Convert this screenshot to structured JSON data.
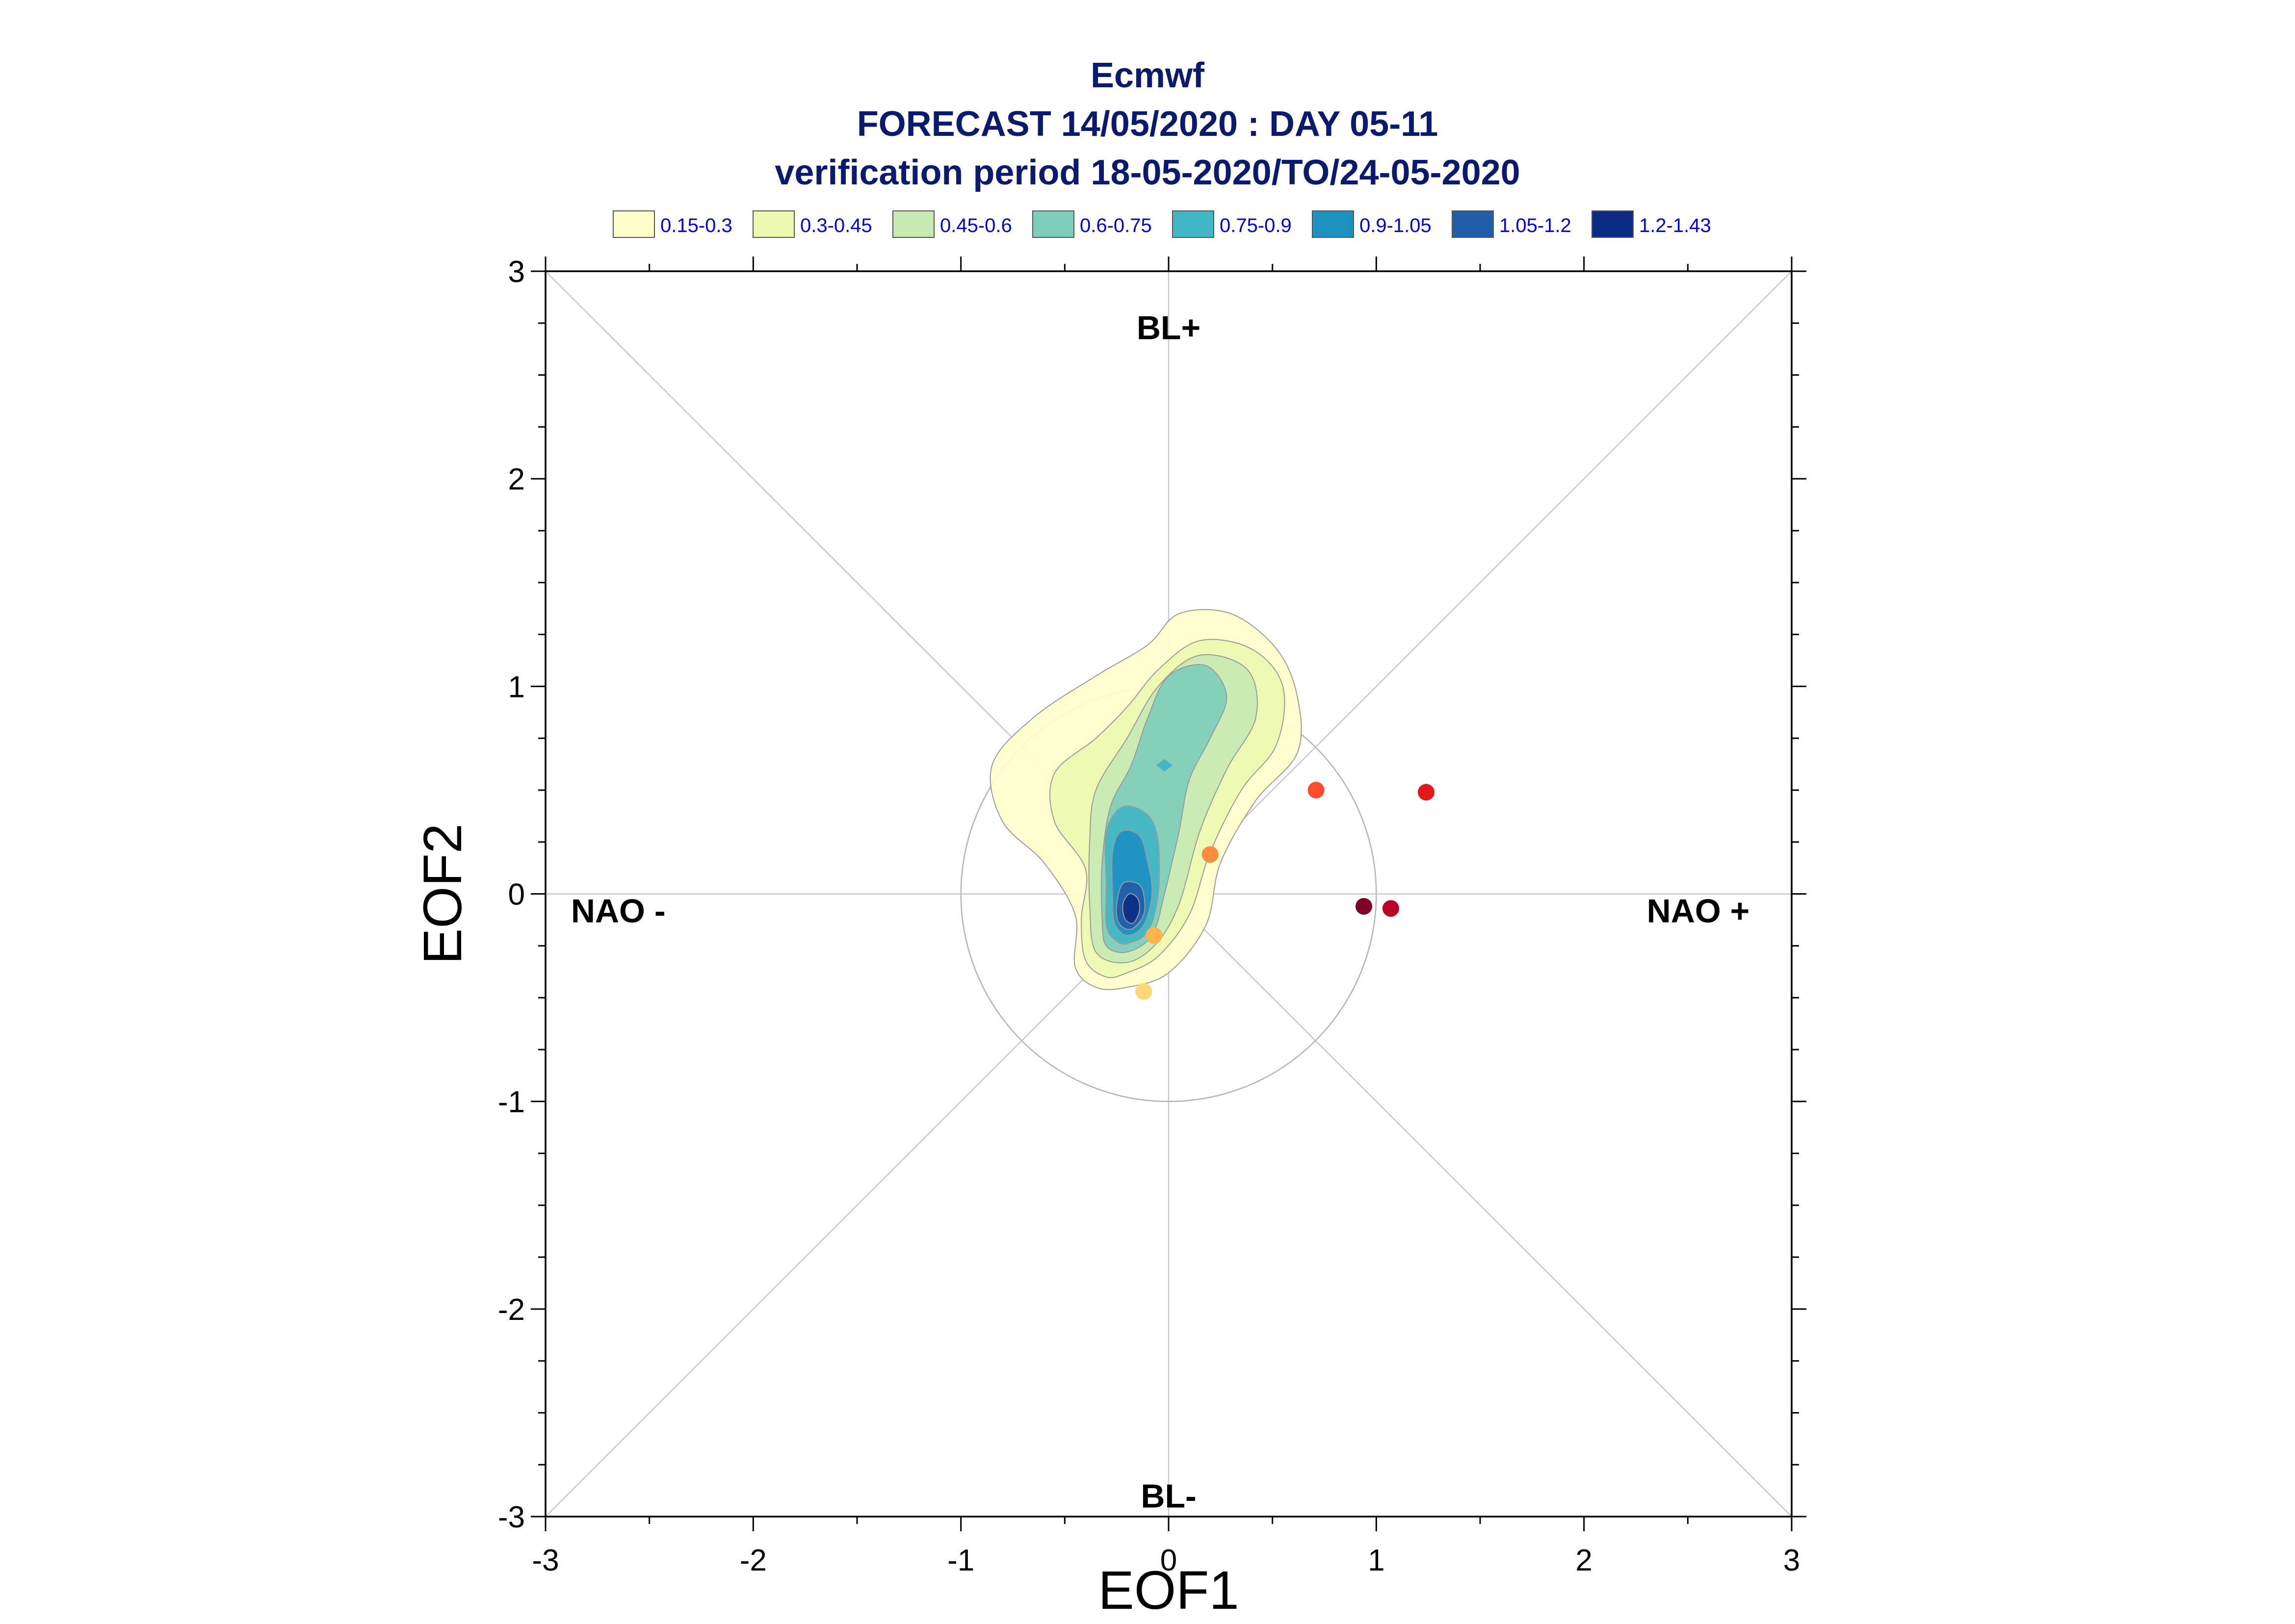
{
  "chart_data": {
    "type": "scatter",
    "title_lines": [
      "Ecmwf",
      "FORECAST 14/05/2020 : DAY 05-11",
      "verification period 18-05-2020/TO/24-05-2020"
    ],
    "xlabel": "EOF1",
    "ylabel": "EOF2",
    "xlim": [
      -3,
      3
    ],
    "ylim": [
      -3,
      3
    ],
    "x_ticks": [
      -3,
      -2,
      -1,
      0,
      1,
      2,
      3
    ],
    "y_ticks": [
      -3,
      -2,
      -1,
      0,
      1,
      2,
      3
    ],
    "x_tick_labels": [
      "-3",
      "-2",
      "-1",
      "0",
      "1",
      "2",
      "3"
    ],
    "y_tick_labels": [
      "-3",
      "-2",
      "-1",
      "0",
      "1",
      "2",
      "3"
    ],
    "grid": false,
    "reference_circle_radius": 1,
    "regime_labels": [
      {
        "text": "BL+",
        "x": 0,
        "y": 2.73
      },
      {
        "text": "BL-",
        "x": 0,
        "y": -2.9
      },
      {
        "text": "NAO -",
        "x": -2.65,
        "y": -0.08
      },
      {
        "text": "NAO +",
        "x": 2.55,
        "y": -0.08
      }
    ],
    "legend": {
      "placement": "top",
      "entries": [
        {
          "label": "0.15-0.3",
          "color": "#ffffcc"
        },
        {
          "label": "0.3-0.45",
          "color": "#edf8b1"
        },
        {
          "label": "0.45-0.6",
          "color": "#c7e9b4"
        },
        {
          "label": "0.6-0.75",
          "color": "#7fcdbb"
        },
        {
          "label": "0.75-0.9",
          "color": "#41b6c4"
        },
        {
          "label": "0.9-1.05",
          "color": "#1d91c0"
        },
        {
          "label": "1.05-1.2",
          "color": "#225ea8"
        },
        {
          "label": "1.2-1.43",
          "color": "#0c2c84"
        }
      ]
    },
    "density_contours": [
      {
        "level": "0.15-0.3",
        "color": "#ffffcc",
        "points": [
          [
            -0.2,
            -0.45
          ],
          [
            0.0,
            -0.38
          ],
          [
            0.18,
            -0.15
          ],
          [
            0.25,
            0.15
          ],
          [
            0.42,
            0.45
          ],
          [
            0.62,
            0.68
          ],
          [
            0.62,
            0.95
          ],
          [
            0.52,
            1.18
          ],
          [
            0.3,
            1.35
          ],
          [
            0.05,
            1.35
          ],
          [
            -0.1,
            1.2
          ],
          [
            -0.35,
            1.05
          ],
          [
            -0.65,
            0.85
          ],
          [
            -0.85,
            0.62
          ],
          [
            -0.8,
            0.35
          ],
          [
            -0.6,
            0.15
          ],
          [
            -0.45,
            -0.1
          ],
          [
            -0.45,
            -0.35
          ],
          [
            -0.35,
            -0.45
          ]
        ]
      },
      {
        "level": "0.3-0.45",
        "color": "#edf8b1",
        "points": [
          [
            -0.2,
            -0.38
          ],
          [
            -0.05,
            -0.3
          ],
          [
            0.1,
            -0.1
          ],
          [
            0.2,
            0.2
          ],
          [
            0.35,
            0.5
          ],
          [
            0.52,
            0.72
          ],
          [
            0.55,
            1.0
          ],
          [
            0.4,
            1.18
          ],
          [
            0.15,
            1.22
          ],
          [
            -0.05,
            1.08
          ],
          [
            -0.2,
            0.9
          ],
          [
            -0.35,
            0.75
          ],
          [
            -0.55,
            0.58
          ],
          [
            -0.55,
            0.35
          ],
          [
            -0.4,
            0.12
          ],
          [
            -0.42,
            -0.12
          ],
          [
            -0.4,
            -0.32
          ],
          [
            -0.3,
            -0.4
          ]
        ]
      },
      {
        "level": "0.45-0.6",
        "color": "#c7e9b4",
        "points": [
          [
            -0.2,
            -0.33
          ],
          [
            -0.06,
            -0.24
          ],
          [
            0.05,
            -0.05
          ],
          [
            0.15,
            0.3
          ],
          [
            0.28,
            0.6
          ],
          [
            0.42,
            0.85
          ],
          [
            0.38,
            1.08
          ],
          [
            0.15,
            1.15
          ],
          [
            -0.05,
            1.0
          ],
          [
            -0.2,
            0.75
          ],
          [
            -0.35,
            0.5
          ],
          [
            -0.38,
            0.25
          ],
          [
            -0.38,
            -0.05
          ],
          [
            -0.35,
            -0.28
          ]
        ]
      },
      {
        "level": "0.6-0.75",
        "color": "#7fcdbb",
        "points": [
          [
            -0.2,
            -0.28
          ],
          [
            -0.08,
            -0.2
          ],
          [
            -0.02,
            0.0
          ],
          [
            0.05,
            0.3
          ],
          [
            0.1,
            0.55
          ],
          [
            0.2,
            0.75
          ],
          [
            0.28,
            0.95
          ],
          [
            0.18,
            1.1
          ],
          [
            0.0,
            1.05
          ],
          [
            -0.1,
            0.85
          ],
          [
            -0.18,
            0.62
          ],
          [
            -0.28,
            0.42
          ],
          [
            -0.32,
            0.15
          ],
          [
            -0.32,
            -0.12
          ],
          [
            -0.3,
            -0.25
          ]
        ]
      },
      {
        "level": "0.75-0.9",
        "color": "#41b6c4",
        "points": [
          [
            -0.2,
            -0.24
          ],
          [
            -0.1,
            -0.18
          ],
          [
            -0.05,
            0.0
          ],
          [
            -0.05,
            0.25
          ],
          [
            -0.1,
            0.38
          ],
          [
            -0.22,
            0.42
          ],
          [
            -0.3,
            0.3
          ],
          [
            -0.3,
            0.05
          ],
          [
            -0.3,
            -0.15
          ],
          [
            -0.26,
            -0.22
          ]
        ]
      },
      {
        "level": "0.9-1.05",
        "color": "#1d91c0",
        "points": [
          [
            -0.2,
            -0.2
          ],
          [
            -0.12,
            -0.15
          ],
          [
            -0.08,
            0.0
          ],
          [
            -0.1,
            0.15
          ],
          [
            -0.14,
            0.28
          ],
          [
            -0.23,
            0.3
          ],
          [
            -0.27,
            0.2
          ],
          [
            -0.27,
            0.0
          ],
          [
            -0.26,
            -0.14
          ]
        ]
      },
      {
        "level": "1.05-1.2",
        "color": "#225ea8",
        "points": [
          [
            -0.18,
            -0.17
          ],
          [
            -0.12,
            -0.1
          ],
          [
            -0.12,
            0.0
          ],
          [
            -0.15,
            0.05
          ],
          [
            -0.22,
            0.05
          ],
          [
            -0.25,
            -0.05
          ],
          [
            -0.24,
            -0.14
          ]
        ]
      },
      {
        "level": "1.2-1.43",
        "color": "#0c2c84",
        "points": [
          [
            -0.17,
            -0.14
          ],
          [
            -0.14,
            -0.08
          ],
          [
            -0.15,
            -0.02
          ],
          [
            -0.19,
            0.0
          ],
          [
            -0.22,
            -0.05
          ],
          [
            -0.21,
            -0.12
          ]
        ]
      }
    ],
    "density_local_peak": {
      "x": -0.02,
      "y": 0.62,
      "color": "#41b6c4"
    },
    "points": [
      {
        "x": -0.12,
        "y": -0.47,
        "color": "#fed976"
      },
      {
        "x": -0.07,
        "y": -0.2,
        "color": "#feb24c"
      },
      {
        "x": 0.2,
        "y": 0.19,
        "color": "#fd8d3c"
      },
      {
        "x": 0.71,
        "y": 0.5,
        "color": "#fc4e2a"
      },
      {
        "x": 1.24,
        "y": 0.49,
        "color": "#e31a1c"
      },
      {
        "x": 1.07,
        "y": -0.07,
        "color": "#bd0026"
      },
      {
        "x": 0.94,
        "y": -0.06,
        "color": "#800026"
      }
    ]
  }
}
